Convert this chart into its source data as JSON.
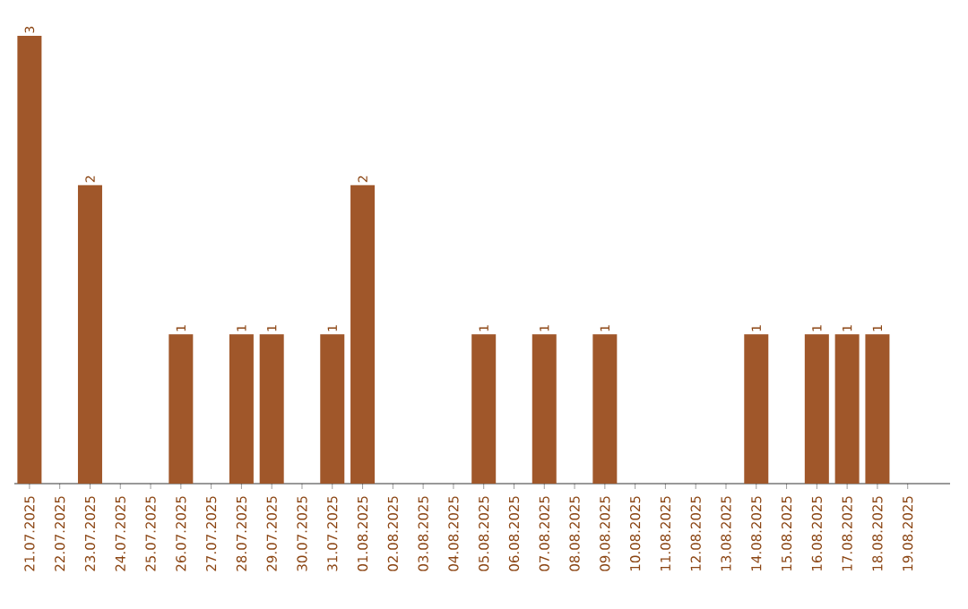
{
  "chart_data": {
    "type": "bar",
    "categories": [
      "21.07.2025",
      "22.07.2025",
      "23.07.2025",
      "24.07.2025",
      "25.07.2025",
      "26.07.2025",
      "27.07.2025",
      "28.07.2025",
      "29.07.2025",
      "30.07.2025",
      "31.07.2025",
      "01.08.2025",
      "02.08.2025",
      "03.08.2025",
      "04.08.2025",
      "05.08.2025",
      "06.08.2025",
      "07.08.2025",
      "08.08.2025",
      "09.08.2025",
      "10.08.2025",
      "11.08.2025",
      "12.08.2025",
      "13.08.2025",
      "14.08.2025",
      "15.08.2025",
      "16.08.2025",
      "17.08.2025",
      "18.08.2025",
      "19.08.2025"
    ],
    "values": [
      3,
      0,
      2,
      0,
      0,
      1,
      0,
      1,
      1,
      0,
      1,
      2,
      0,
      0,
      0,
      1,
      0,
      1,
      0,
      1,
      0,
      0,
      0,
      0,
      1,
      0,
      1,
      1,
      1,
      0
    ],
    "value_labels": [
      "3",
      null,
      "2",
      null,
      null,
      "1",
      null,
      "1",
      "1",
      null,
      "1",
      "2",
      null,
      null,
      null,
      "1",
      null,
      "1",
      null,
      "1",
      null,
      null,
      null,
      null,
      "1",
      null,
      "1",
      "1",
      "1",
      null
    ],
    "color": "#a0572a"
  }
}
